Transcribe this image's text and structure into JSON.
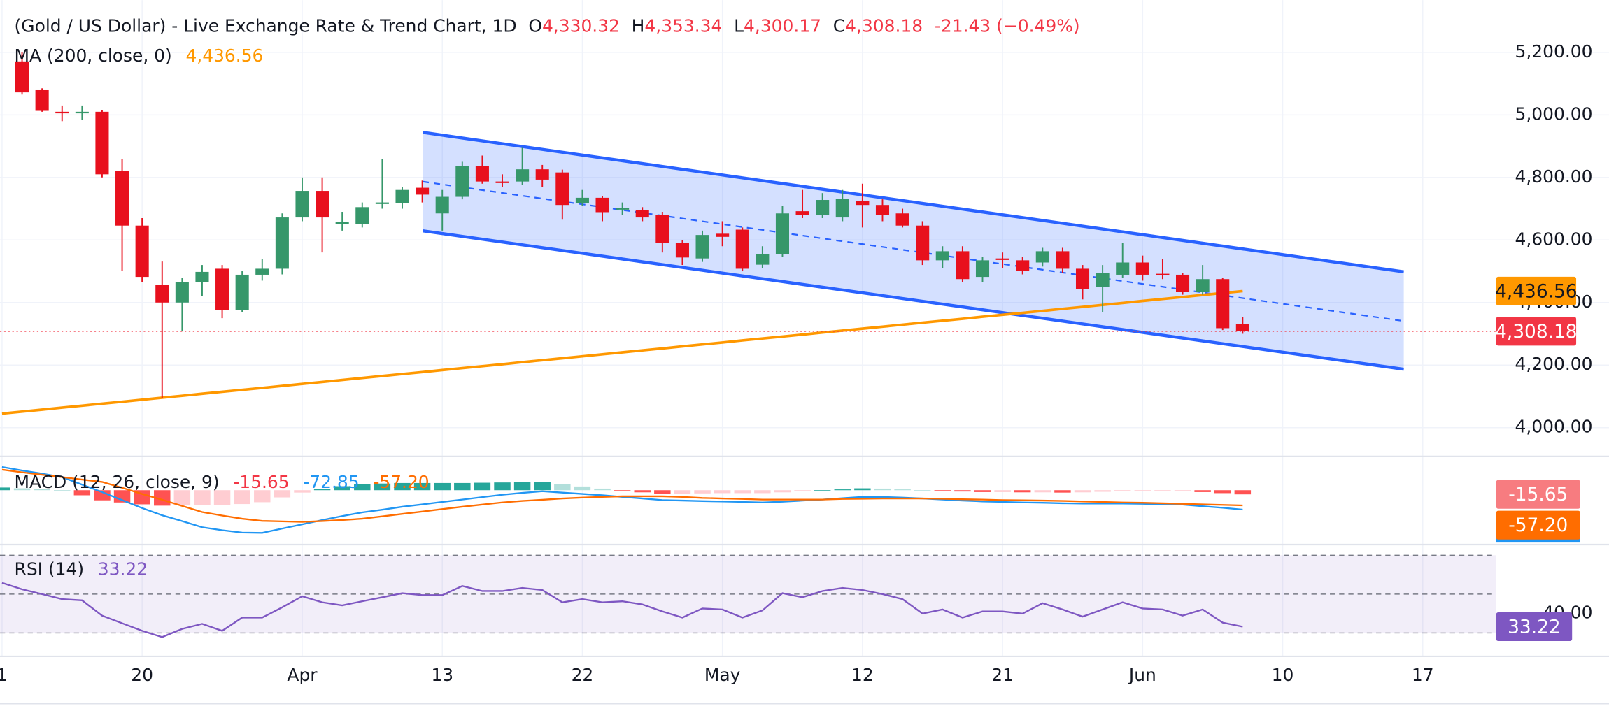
{
  "chart_data": [
    {
      "type": "candlestick",
      "title": "(Gold / US Dollar) - Live Exchange Rate & Trend Chart, 1D",
      "ohlc_legend": [
        {
          "label": "O",
          "value": "4,330.32"
        },
        {
          "label": "H",
          "value": "4,353.34"
        },
        {
          "label": "L",
          "value": "4,300.17"
        },
        {
          "label": "C",
          "value": "4,308.18"
        }
      ],
      "change": "-21.43 (−0.49%)",
      "categories": [
        "1",
        null,
        null,
        null,
        null,
        null,
        null,
        "20",
        null,
        null,
        null,
        null,
        null,
        null,
        null,
        "Apr",
        null,
        null,
        null,
        null,
        null,
        null,
        "13",
        null,
        null,
        null,
        null,
        null,
        null,
        "22",
        null,
        null,
        null,
        null,
        null,
        null,
        "May",
        null,
        null,
        null,
        null,
        null,
        null,
        "12",
        null,
        null,
        null,
        null,
        null,
        null,
        "21",
        null,
        null,
        null,
        null,
        null,
        null,
        "Jun",
        null,
        null,
        null,
        null,
        null,
        null,
        "10",
        null,
        null,
        null,
        null,
        null,
        null,
        "17",
        null,
        null,
        null
      ],
      "open": [
        null,
        5171,
        5079,
        5010,
        5005,
        5010,
        4820,
        4646,
        4456,
        4400,
        4466,
        4508,
        4377,
        4489,
        4508,
        4672,
        4757,
        4650,
        4652,
        4715,
        4718,
        4767,
        4685,
        4738,
        4836,
        4787,
        4787,
        4826,
        4816,
        4718,
        4735,
        4700,
        4695,
        4679,
        4590,
        4541,
        4620,
        4633,
        4521,
        4554,
        4692,
        4679,
        4672,
        4725,
        4712,
        4685,
        4646,
        4535,
        4564,
        4482,
        4541,
        4535,
        4528,
        4564,
        4508,
        4449,
        4489,
        4528,
        4492,
        4489,
        4433,
        4475,
        4330.32,
        null,
        null,
        null,
        null,
        null,
        null,
        null,
        null,
        null,
        null,
        null,
        null
      ],
      "high": [
        null,
        5200,
        5085,
        5030,
        5030,
        5015,
        4860,
        4670,
        4531,
        4480,
        4520,
        4520,
        4500,
        4540,
        4685,
        4800,
        4800,
        4690,
        4720,
        4860,
        4770,
        4790,
        4760,
        4850,
        4870,
        4810,
        4895,
        4840,
        4825,
        4760,
        4740,
        4720,
        4705,
        4690,
        4600,
        4630,
        4660,
        4640,
        4580,
        4710,
        4760,
        4750,
        4760,
        4780,
        4730,
        4700,
        4660,
        4580,
        4580,
        4545,
        4560,
        4545,
        4575,
        4575,
        4520,
        4520,
        4590,
        4550,
        4540,
        4495,
        4520,
        4480,
        4353.34,
        null,
        null,
        null,
        null,
        null,
        null,
        null,
        null,
        null,
        null,
        null,
        null
      ],
      "low": [
        null,
        5065,
        5010,
        4980,
        4985,
        4800,
        4500,
        4465,
        4095,
        4310,
        4420,
        4350,
        4370,
        4470,
        4490,
        4660,
        4560,
        4630,
        4640,
        4700,
        4700,
        4720,
        4630,
        4730,
        4780,
        4770,
        4775,
        4770,
        4665,
        4710,
        4660,
        4680,
        4660,
        4560,
        4520,
        4530,
        4580,
        4500,
        4510,
        4545,
        4670,
        4670,
        4660,
        4640,
        4660,
        4640,
        4520,
        4510,
        4465,
        4465,
        4510,
        4490,
        4515,
        4495,
        4410,
        4370,
        4480,
        4470,
        4475,
        4425,
        4425,
        4312,
        4300.17,
        null,
        null,
        null,
        null,
        null,
        null,
        null,
        null,
        null,
        null,
        null,
        null
      ],
      "close": [
        null,
        5072,
        5013,
        5005,
        5010,
        4810,
        4646,
        4482,
        4400,
        4466,
        4498,
        4377,
        4489,
        4508,
        4672,
        4757,
        4672,
        4658,
        4705,
        4720,
        4760,
        4745,
        4738,
        4836,
        4787,
        4785,
        4826,
        4793,
        4712,
        4735,
        4689,
        4702,
        4672,
        4590,
        4544,
        4616,
        4610,
        4508,
        4554,
        4685,
        4679,
        4728,
        4731,
        4712,
        4679,
        4646,
        4535,
        4564,
        4475,
        4535,
        4538,
        4502,
        4564,
        4508,
        4443,
        4495,
        4528,
        4489,
        4490,
        4433,
        4475,
        4318,
        4308.18,
        null,
        null,
        null,
        null,
        null,
        null,
        null,
        null,
        null,
        null,
        null,
        null
      ],
      "up_color": "#36976a",
      "down_color": "#e8101d",
      "ylim": [
        3908,
        5367
      ],
      "yticks": [
        {
          "value": 4000,
          "label": "4,000.00"
        },
        {
          "value": 4200,
          "label": "4,200.00"
        },
        {
          "value": 4400,
          "label": "4,400.00"
        },
        {
          "value": 4600,
          "label": "4,600.00"
        },
        {
          "value": 4800,
          "label": "4,800.00"
        },
        {
          "value": 5000,
          "label": "5,000.00"
        },
        {
          "value": 5200,
          "label": "5,200.00"
        }
      ],
      "grid": true,
      "last_price_color": "#f23645",
      "overlays": [
        {
          "name": "MA (200, close, 0)",
          "type": "line",
          "color": "#ff9800",
          "last_value_label": "4,436.56",
          "values": [
            4045.0,
            4051.3,
            4057.6,
            4063.9,
            4070.3,
            4076.6,
            4082.9,
            4089.2,
            4095.5,
            4101.8,
            4108.2,
            4114.5,
            4120.8,
            4127.1,
            4133.4,
            4139.7,
            4146.0,
            4152.4,
            4158.7,
            4165.0,
            4171.3,
            4177.6,
            4183.9,
            4190.2,
            4196.6,
            4202.9,
            4209.2,
            4215.5,
            4221.8,
            4228.1,
            4234.5,
            4240.8,
            4247.1,
            4253.4,
            4259.7,
            4266.0,
            4272.3,
            4278.7,
            4285.0,
            4291.3,
            4297.6,
            4303.9,
            4310.2,
            4316.5,
            4322.9,
            4329.2,
            4335.5,
            4341.8,
            4348.1,
            4354.4,
            4360.8,
            4367.1,
            4373.4,
            4379.7,
            4386.0,
            4392.3,
            4398.6,
            4405.0,
            4411.3,
            4417.6,
            4423.9,
            4430.2,
            4436.56,
            null,
            null,
            null,
            null,
            null,
            null,
            null,
            null,
            null,
            null,
            null,
            null
          ]
        }
      ]
    },
    {
      "type": "macd",
      "title": "MACD (12, 26, close, 9)",
      "ylim": [
        -200,
        119
      ],
      "series": [
        {
          "type": "histogram",
          "color": "#f23645",
          "last_value_label": "-15.65",
          "colors": {
            "rising_above": "#26a69a",
            "falling_above": "#b2dfdb",
            "falling_below": "#ff5252",
            "rising_below": "#ffcdd2"
          },
          "values": [
            10,
            7,
            4,
            0,
            -19,
            -38,
            -46,
            -53,
            -58,
            -57,
            -57,
            -55,
            -52,
            -45,
            -27,
            -9,
            4,
            15,
            24,
            25,
            27,
            27,
            27,
            27,
            28,
            29,
            30,
            32,
            22,
            14,
            6,
            -2,
            -8,
            -14,
            -14,
            -12,
            -11,
            -11,
            -11,
            -8,
            -4,
            0,
            3,
            7,
            6,
            3,
            0,
            -3,
            -5,
            -7,
            -7,
            -8,
            -8,
            -9,
            -8,
            -6,
            -4,
            -4,
            -4,
            -3,
            -7,
            -11,
            -15.65,
            null,
            null,
            null,
            null,
            null,
            null,
            null,
            null,
            null,
            null,
            null,
            null
          ]
        },
        {
          "type": "line",
          "color": "#2196f3",
          "last_value_label": "-72.85",
          "values": [
            87,
            74,
            62,
            49,
            21,
            -7,
            -37,
            -67,
            -94,
            -116,
            -139,
            -150,
            -159,
            -160,
            -144,
            -128,
            -112,
            -97,
            -83,
            -73,
            -62,
            -53,
            -44,
            -35,
            -26,
            -17,
            -10,
            -4,
            -9,
            -14,
            -19,
            -25,
            -31,
            -37,
            -39,
            -41,
            -42,
            -44,
            -46,
            -43,
            -39,
            -35,
            -30,
            -25,
            -25,
            -28,
            -31,
            -35,
            -39,
            -42,
            -44,
            -46,
            -47,
            -49,
            -50,
            -50,
            -50,
            -51,
            -53,
            -54,
            -60,
            -66,
            -72.85,
            null,
            null,
            null,
            null,
            null,
            null,
            null,
            null,
            null,
            null,
            null,
            null
          ]
        },
        {
          "type": "line",
          "color": "#ff6d00",
          "last_value_label": "-57.20",
          "values": [
            77,
            67,
            58,
            49,
            40,
            31,
            9,
            -14,
            -36,
            -59,
            -82,
            -95,
            -107,
            -115,
            -117,
            -119,
            -116,
            -112,
            -107,
            -98,
            -89,
            -80,
            -71,
            -62,
            -54,
            -46,
            -40,
            -36,
            -31,
            -28,
            -25,
            -23,
            -23,
            -23,
            -25,
            -29,
            -31,
            -33,
            -35,
            -35,
            -35,
            -35,
            -33,
            -32,
            -31,
            -31,
            -31,
            -32,
            -34,
            -35,
            -37,
            -38,
            -39,
            -40,
            -42,
            -44,
            -46,
            -47,
            -49,
            -51,
            -53,
            -55,
            -57.2,
            null,
            null,
            null,
            null,
            null,
            null,
            null,
            null,
            null,
            null,
            null,
            null
          ]
        }
      ]
    },
    {
      "type": "rsi",
      "title": "RSI (14)",
      "ylim": [
        19,
        75
      ],
      "yticks": [
        {
          "value": 40,
          "label": "40.00"
        }
      ],
      "hlines": [
        70,
        50,
        30
      ],
      "band_color": "#7e57c2",
      "series": [
        {
          "type": "line",
          "color": "#7e57c2",
          "last_value_label": "33.22",
          "values": [
            55.8,
            52.5,
            50,
            47.4,
            46.8,
            38.9,
            35,
            31.1,
            27.9,
            32.1,
            34.7,
            31.1,
            37.9,
            37.9,
            43.2,
            48.9,
            45.8,
            44.2,
            46.3,
            48.4,
            50.5,
            49.5,
            49.5,
            54.2,
            51.6,
            51.6,
            53.2,
            52.1,
            45.8,
            47.4,
            45.8,
            46.3,
            44.7,
            41.1,
            37.9,
            42.6,
            42.1,
            37.9,
            41.6,
            50.5,
            48.4,
            51.6,
            53.2,
            52.1,
            50.0,
            47.4,
            40.0,
            42.1,
            37.9,
            41.1,
            41.1,
            40.0,
            45.3,
            42.1,
            38.4,
            42.1,
            45.8,
            42.6,
            42.1,
            38.9,
            42.1,
            35.3,
            33.22,
            null,
            null,
            null,
            null,
            null,
            null,
            null,
            null,
            null,
            null,
            null,
            null
          ]
        }
      ]
    }
  ]
}
